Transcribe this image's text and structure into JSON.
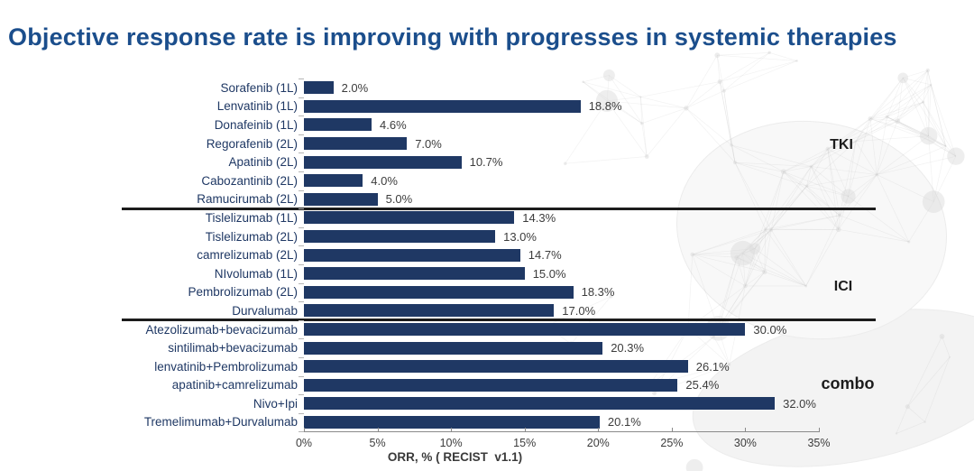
{
  "title": "Objective response rate is improving with progresses in systemic therapies",
  "colors": {
    "title_blue": "#1b4e8c",
    "bar_navy": "#1f3864",
    "category_label": "#1f3864",
    "value_label": "#3c3c3c",
    "separator": "#1c1c1c",
    "axis_gray": "#8a8a8a"
  },
  "chart_data": {
    "type": "bar",
    "orientation": "horizontal",
    "title": "Objective response rate is improving with progresses in systemic therapies",
    "xlabel": "ORR, % ( RECIST  v1.1)",
    "ylabel": "",
    "xlim": [
      0,
      35
    ],
    "x_tick_labels": [
      "0%",
      "5%",
      "10%",
      "15%",
      "20%",
      "25%",
      "30%",
      "35%"
    ],
    "grid": false,
    "legend": false,
    "group_label_position": "right",
    "groups": [
      {
        "label": "TKI",
        "items": [
          {
            "category": "Sorafenib (1L)",
            "value": 2.0,
            "display": "2.0%"
          },
          {
            "category": "Lenvatinib (1L)",
            "value": 18.8,
            "display": "18.8%"
          },
          {
            "category": "Donafeinib (1L)",
            "value": 4.6,
            "display": "4.6%"
          },
          {
            "category": "Regorafenib (2L)",
            "value": 7.0,
            "display": "7.0%"
          },
          {
            "category": "Apatinib (2L)",
            "value": 10.7,
            "display": "10.7%"
          },
          {
            "category": "Cabozantinib (2L)",
            "value": 4.0,
            "display": "4.0%"
          },
          {
            "category": "Ramucirumab (2L)",
            "value": 5.0,
            "display": "5.0%"
          }
        ]
      },
      {
        "label": "ICI",
        "items": [
          {
            "category": "Tislelizumab (1L)",
            "value": 14.3,
            "display": "14.3%"
          },
          {
            "category": "Tislelizumab (2L)",
            "value": 13.0,
            "display": "13.0%"
          },
          {
            "category": "camrelizumab (2L)",
            "value": 14.7,
            "display": "14.7%"
          },
          {
            "category": "NIvolumab (1L)",
            "value": 15.0,
            "display": "15.0%"
          },
          {
            "category": "Pembrolizumab (2L)",
            "value": 18.3,
            "display": "18.3%"
          },
          {
            "category": "Durvalumab",
            "value": 17.0,
            "display": "17.0%"
          }
        ]
      },
      {
        "label": "combo",
        "items": [
          {
            "category": "Atezolizumab+bevacizumab",
            "value": 30.0,
            "display": "30.0%"
          },
          {
            "category": "sintilimab+bevacizumab",
            "value": 20.3,
            "display": "20.3%"
          },
          {
            "category": "lenvatinib+Pembrolizumab",
            "value": 26.1,
            "display": "26.1%"
          },
          {
            "category": "apatinib+camrelizumab",
            "value": 25.4,
            "display": "25.4%"
          },
          {
            "category": "Nivo+Ipi",
            "value": 32.0,
            "display": "32.0%"
          },
          {
            "category": "Tremelimumab+Durvalumab",
            "value": 20.1,
            "display": "20.1%"
          }
        ]
      }
    ]
  }
}
